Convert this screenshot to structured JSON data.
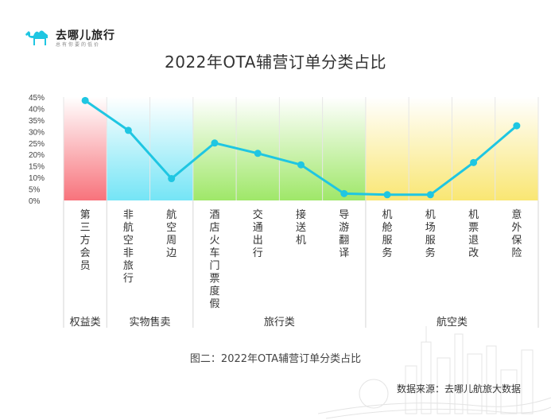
{
  "logo": {
    "name": "去哪儿旅行",
    "tagline": "总有你要的低价",
    "icon": "camel-icon"
  },
  "chart_data": {
    "type": "line",
    "title": "2022年OTA辅营订单分类占比",
    "categories": [
      "第三方会员",
      "非航空非旅行",
      "航空周边",
      "酒店火车门票度假",
      "交通出行",
      "接送机",
      "导游翻译",
      "机舱服务",
      "机场服务",
      "机票退改",
      "意外保险"
    ],
    "values": [
      43.5,
      30.5,
      9.5,
      25,
      20.5,
      15.5,
      3,
      2.5,
      2.5,
      16.5,
      32.5
    ],
    "ylim": [
      0,
      45
    ],
    "yticks": [
      "0%",
      "5%",
      "10%",
      "15%",
      "20%",
      "25%",
      "30%",
      "35%",
      "40%",
      "45%"
    ],
    "groups": [
      {
        "label": "权益类",
        "span": [
          0,
          0
        ],
        "color": "#f65a64"
      },
      {
        "label": "实物售卖",
        "span": [
          1,
          2
        ],
        "color": "#5ce0f4"
      },
      {
        "label": "旅行类",
        "span": [
          3,
          6
        ],
        "color": "#8ee34e"
      },
      {
        "label": "航空类",
        "span": [
          7,
          10
        ],
        "color": "#f8e25a"
      }
    ],
    "line_color": "#1fc6e2",
    "grid": true
  },
  "caption": "图二：2022年OTA辅营订单分类占比",
  "source": "数据来源：去哪儿航旅大数据"
}
